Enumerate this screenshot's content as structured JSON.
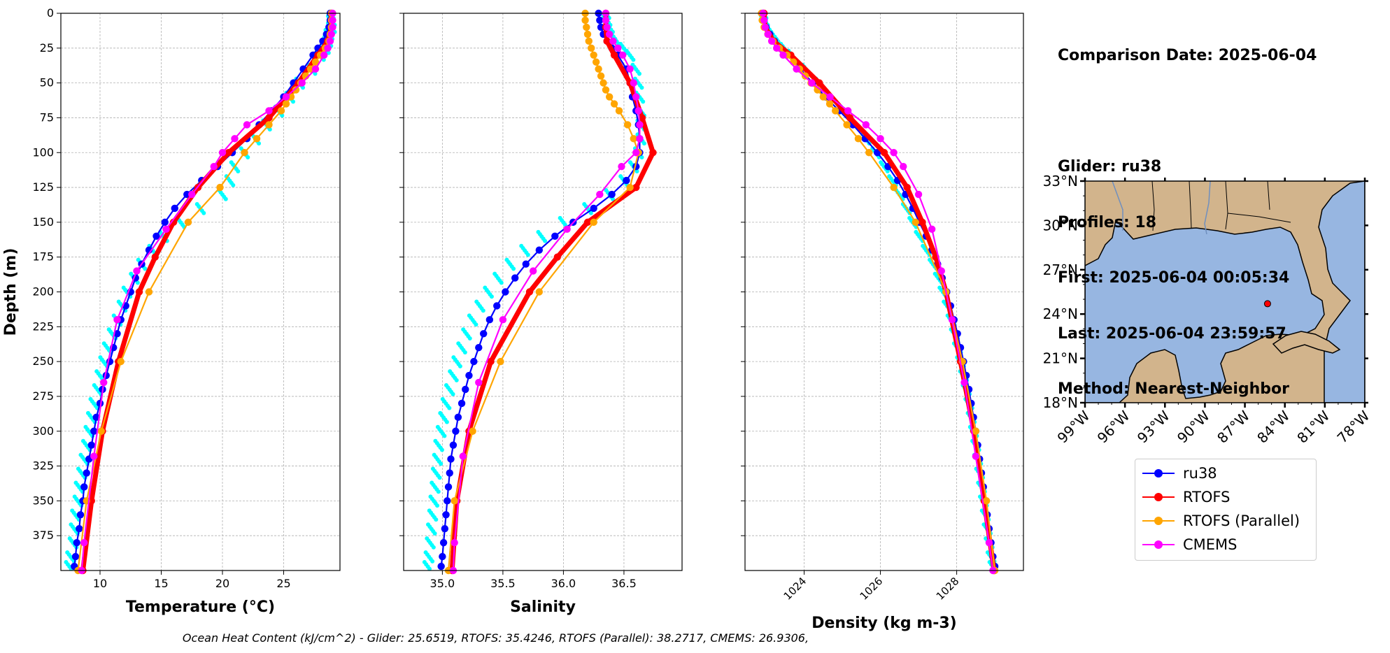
{
  "info": {
    "comparison_date": "Comparison Date: 2025-06-04",
    "glider": "Glider: ru38",
    "profiles": "Profiles: 18",
    "first": "First: 2025-06-04 00:05:34",
    "last": "Last: 2025-06-04 23:59:57",
    "method": "Method: Nearest-Neighbor"
  },
  "footer": "Ocean Heat Content (kJ/cm^2) - Glider: 25.6519,  RTOFS: 35.4246,  RTOFS (Parallel): 38.2717,  CMEMS: 26.9306,",
  "colors": {
    "ru38": "#0000ff",
    "rtofs": "#ff0000",
    "rtofs_parallel": "#ffa500",
    "cmems": "#ff00ff",
    "glider_raw": "#00ffff",
    "land": "#d2b48c",
    "ocean": "#97b6e1"
  },
  "legend": [
    {
      "label": "ru38",
      "color": "#0000ff"
    },
    {
      "label": "RTOFS",
      "color": "#ff0000"
    },
    {
      "label": "RTOFS (Parallel)",
      "color": "#ffa500"
    },
    {
      "label": "CMEMS",
      "color": "#ff00ff"
    }
  ],
  "chart_data": [
    {
      "type": "line",
      "xlabel": "Temperature (°C)",
      "ylabel": "Depth (m)",
      "xlim": [
        6.8,
        29.6
      ],
      "ylim": [
        400,
        0
      ],
      "xticks": [
        10,
        15,
        20,
        25
      ],
      "yticks": [
        0,
        25,
        50,
        75,
        100,
        125,
        150,
        175,
        200,
        225,
        250,
        275,
        300,
        325,
        350,
        375
      ],
      "grid": true,
      "depth": [
        0,
        5,
        10,
        15,
        20,
        25,
        30,
        40,
        50,
        60,
        70,
        80,
        90,
        100,
        110,
        120,
        130,
        140,
        150,
        160,
        170,
        180,
        190,
        200,
        210,
        220,
        230,
        240,
        250,
        260,
        270,
        280,
        290,
        300,
        310,
        320,
        330,
        340,
        350,
        360,
        370,
        380,
        390,
        397
      ],
      "series": [
        {
          "name": "ru38",
          "values": [
            28.8,
            28.8,
            28.7,
            28.5,
            28.2,
            27.8,
            27.4,
            26.6,
            25.8,
            25.0,
            24.0,
            23.0,
            22.0,
            20.8,
            19.6,
            18.3,
            17.1,
            16.1,
            15.3,
            14.6,
            14.0,
            13.4,
            12.9,
            12.5,
            12.1,
            11.7,
            11.4,
            11.1,
            10.8,
            10.5,
            10.2,
            10.0,
            9.7,
            9.5,
            9.3,
            9.1,
            8.9,
            8.7,
            8.6,
            8.4,
            8.3,
            8.1,
            8.0,
            7.9
          ]
        },
        {
          "name": "RTOFS",
          "depth": [
            0,
            10,
            20,
            30,
            50,
            75,
            100,
            125,
            150,
            175,
            200,
            250,
            300,
            350,
            400
          ],
          "values": [
            28.9,
            28.9,
            28.6,
            27.8,
            26.2,
            23.8,
            20.5,
            18.0,
            16.0,
            14.5,
            13.2,
            11.5,
            10.2,
            9.3,
            8.6
          ]
        },
        {
          "name": "RTOFS (Parallel)",
          "depth": [
            0,
            5,
            10,
            15,
            20,
            25,
            30,
            35,
            40,
            45,
            50,
            55,
            60,
            65,
            70,
            80,
            90,
            100,
            125,
            150,
            200,
            250,
            300,
            350,
            400
          ],
          "values": [
            28.9,
            28.9,
            28.9,
            28.8,
            28.7,
            28.4,
            28.0,
            27.6,
            27.2,
            26.8,
            26.4,
            26.0,
            25.6,
            25.2,
            24.8,
            23.8,
            22.8,
            21.8,
            19.8,
            17.2,
            14.0,
            11.7,
            10.1,
            8.9,
            8.2
          ]
        },
        {
          "name": "CMEMS",
          "depth": [
            0,
            5,
            10,
            15,
            20,
            25,
            30,
            40,
            50,
            60,
            70,
            80,
            90,
            100,
            110,
            130,
            155,
            185,
            220,
            265,
            318,
            380,
            400
          ],
          "values": [
            29.0,
            29.0,
            29.0,
            28.9,
            28.8,
            28.6,
            28.3,
            27.6,
            26.5,
            25.2,
            23.8,
            22.0,
            21.0,
            20.0,
            19.3,
            17.5,
            15.4,
            13.0,
            11.4,
            10.3,
            9.5,
            8.7,
            8.5
          ]
        },
        {
          "name": "Glider profiles",
          "values": [
            28.8,
            28.9,
            28.9,
            28.7,
            28.6,
            28.4,
            28.0,
            27.3,
            26.3,
            25.5,
            24.6,
            23.6,
            22.7,
            21.8,
            21.0,
            20.6,
            20.0,
            18.2,
            16.6,
            15.2,
            14.3,
            13.4,
            12.8,
            12.2,
            11.8,
            11.4,
            11.0,
            10.6,
            10.3,
            10.0,
            9.8,
            9.5,
            9.3,
            9.1,
            8.9,
            8.7,
            8.5,
            8.3,
            8.2,
            8.0,
            7.9,
            7.8,
            7.6,
            7.5
          ]
        }
      ]
    },
    {
      "type": "line",
      "xlabel": "Salinity",
      "xlim": [
        34.68,
        36.98
      ],
      "ylim": [
        400,
        0
      ],
      "xticks": [
        35.0,
        35.5,
        36.0,
        36.5
      ],
      "grid": true,
      "depth": [
        0,
        5,
        10,
        15,
        20,
        25,
        30,
        40,
        50,
        60,
        70,
        80,
        90,
        100,
        110,
        120,
        130,
        140,
        150,
        160,
        170,
        180,
        190,
        200,
        210,
        220,
        230,
        240,
        250,
        260,
        270,
        280,
        290,
        300,
        310,
        320,
        330,
        340,
        350,
        360,
        370,
        380,
        390,
        397
      ],
      "series": [
        {
          "name": "ru38",
          "values": [
            36.29,
            36.3,
            36.31,
            36.33,
            36.36,
            36.4,
            36.45,
            36.52,
            36.55,
            36.57,
            36.6,
            36.62,
            36.63,
            36.63,
            36.6,
            36.52,
            36.4,
            36.25,
            36.08,
            35.93,
            35.8,
            35.69,
            35.6,
            35.52,
            35.45,
            35.39,
            35.34,
            35.3,
            35.26,
            35.22,
            35.19,
            35.16,
            35.13,
            35.11,
            35.09,
            35.07,
            35.06,
            35.05,
            35.04,
            35.03,
            35.02,
            35.01,
            35.0,
            34.99
          ]
        },
        {
          "name": "RTOFS",
          "depth": [
            0,
            10,
            20,
            30,
            50,
            75,
            100,
            125,
            150,
            175,
            200,
            250,
            300,
            350,
            400
          ],
          "values": [
            36.35,
            36.35,
            36.36,
            36.42,
            36.55,
            36.65,
            36.74,
            36.6,
            36.2,
            35.95,
            35.72,
            35.4,
            35.22,
            35.12,
            35.08
          ]
        },
        {
          "name": "RTOFS (Parallel)",
          "depth": [
            0,
            5,
            10,
            15,
            20,
            25,
            30,
            35,
            40,
            45,
            50,
            55,
            60,
            65,
            70,
            80,
            90,
            100,
            125,
            150,
            200,
            250,
            300,
            350,
            400
          ],
          "values": [
            36.18,
            36.18,
            36.19,
            36.2,
            36.21,
            36.23,
            36.25,
            36.27,
            36.29,
            36.31,
            36.33,
            36.35,
            36.38,
            36.42,
            36.46,
            36.53,
            36.58,
            36.62,
            36.55,
            36.25,
            35.8,
            35.48,
            35.25,
            35.1,
            35.05
          ]
        },
        {
          "name": "CMEMS",
          "depth": [
            0,
            5,
            10,
            15,
            20,
            25,
            30,
            40,
            50,
            60,
            70,
            80,
            90,
            100,
            110,
            130,
            155,
            185,
            220,
            265,
            318,
            380,
            400
          ],
          "values": [
            36.35,
            36.35,
            36.36,
            36.38,
            36.41,
            36.45,
            36.49,
            36.55,
            36.58,
            36.6,
            36.62,
            36.63,
            36.63,
            36.6,
            36.48,
            36.3,
            36.03,
            35.75,
            35.5,
            35.3,
            35.17,
            35.1,
            35.09
          ]
        },
        {
          "name": "Glider profiles",
          "values": [
            36.35,
            36.36,
            36.38,
            36.4,
            36.44,
            36.5,
            36.55,
            36.6,
            36.62,
            36.63,
            36.64,
            36.64,
            36.64,
            36.62,
            36.58,
            36.5,
            36.38,
            36.2,
            36.0,
            35.82,
            35.68,
            35.56,
            35.46,
            35.38,
            35.31,
            35.25,
            35.2,
            35.16,
            35.12,
            35.09,
            35.06,
            35.03,
            35.01,
            34.99,
            34.97,
            34.96,
            34.95,
            34.94,
            34.93,
            34.92,
            34.91,
            34.9,
            34.89,
            34.88
          ]
        }
      ]
    },
    {
      "type": "line",
      "xlabel": "Density (kg m-3)",
      "xlim": [
        1022.45,
        1029.75
      ],
      "ylim": [
        400,
        0
      ],
      "xticks": [
        1024,
        1026,
        1028
      ],
      "grid": true,
      "depth": [
        0,
        5,
        10,
        15,
        20,
        25,
        30,
        40,
        50,
        60,
        70,
        80,
        90,
        100,
        110,
        120,
        130,
        140,
        150,
        160,
        170,
        180,
        190,
        200,
        210,
        220,
        230,
        240,
        250,
        260,
        270,
        280,
        290,
        300,
        310,
        320,
        330,
        340,
        350,
        360,
        370,
        380,
        390,
        397
      ],
      "series": [
        {
          "name": "ru38",
          "values": [
            1022.92,
            1022.95,
            1023.0,
            1023.1,
            1023.22,
            1023.38,
            1023.55,
            1023.9,
            1024.22,
            1024.56,
            1024.92,
            1025.28,
            1025.6,
            1025.92,
            1026.2,
            1026.45,
            1026.66,
            1026.85,
            1027.02,
            1027.2,
            1027.35,
            1027.5,
            1027.62,
            1027.74,
            1027.84,
            1027.93,
            1028.02,
            1028.1,
            1028.18,
            1028.25,
            1028.32,
            1028.38,
            1028.44,
            1028.5,
            1028.55,
            1028.6,
            1028.65,
            1028.7,
            1028.75,
            1028.8,
            1028.85,
            1028.9,
            1028.95,
            1029.0
          ]
        },
        {
          "name": "RTOFS",
          "depth": [
            0,
            10,
            20,
            30,
            50,
            75,
            100,
            125,
            150,
            175,
            200,
            250,
            300,
            350,
            400
          ],
          "values": [
            1022.95,
            1022.98,
            1023.2,
            1023.65,
            1024.4,
            1025.2,
            1026.1,
            1026.7,
            1027.1,
            1027.45,
            1027.72,
            1028.1,
            1028.45,
            1028.72,
            1028.98
          ]
        },
        {
          "name": "RTOFS (Parallel)",
          "depth": [
            0,
            5,
            10,
            15,
            20,
            25,
            30,
            35,
            40,
            45,
            50,
            55,
            60,
            65,
            70,
            80,
            90,
            100,
            125,
            150,
            200,
            250,
            300,
            350,
            400
          ],
          "values": [
            1022.88,
            1022.9,
            1022.95,
            1023.05,
            1023.18,
            1023.35,
            1023.55,
            1023.72,
            1023.88,
            1024.03,
            1024.18,
            1024.35,
            1024.5,
            1024.67,
            1024.82,
            1025.12,
            1025.42,
            1025.7,
            1026.35,
            1026.92,
            1027.72,
            1028.15,
            1028.5,
            1028.78,
            1029.0
          ]
        },
        {
          "name": "CMEMS",
          "depth": [
            0,
            5,
            10,
            15,
            20,
            25,
            30,
            40,
            50,
            60,
            70,
            80,
            90,
            100,
            110,
            130,
            155,
            185,
            220,
            265,
            318,
            380,
            400
          ],
          "values": [
            1022.92,
            1022.95,
            1022.98,
            1023.05,
            1023.15,
            1023.28,
            1023.45,
            1023.8,
            1024.2,
            1024.68,
            1025.15,
            1025.62,
            1026.0,
            1026.35,
            1026.6,
            1027.0,
            1027.35,
            1027.6,
            1027.88,
            1028.2,
            1028.5,
            1028.85,
            1028.95
          ]
        },
        {
          "name": "Glider profiles",
          "values": [
            1022.92,
            1022.96,
            1023.05,
            1023.18,
            1023.32,
            1023.48,
            1023.68,
            1024.05,
            1024.4,
            1024.72,
            1025.05,
            1025.35,
            1025.62,
            1025.88,
            1026.1,
            1026.32,
            1026.5,
            1026.68,
            1026.85,
            1027.02,
            1027.2,
            1027.38,
            1027.52,
            1027.64,
            1027.75,
            1027.85,
            1027.94,
            1028.02,
            1028.1,
            1028.18,
            1028.25,
            1028.32,
            1028.38,
            1028.44,
            1028.5,
            1028.55,
            1028.6,
            1028.65,
            1028.7,
            1028.75,
            1028.8,
            1028.85,
            1028.9,
            1028.95
          ]
        }
      ]
    },
    {
      "type": "map",
      "lon_range": [
        -99,
        -78
      ],
      "lat_range": [
        18,
        33
      ],
      "lon_ticks": [
        "99°W",
        "96°W",
        "93°W",
        "90°W",
        "87°W",
        "84°W",
        "81°W",
        "78°W"
      ],
      "lat_ticks": [
        "33°N",
        "30°N",
        "27°N",
        "24°N",
        "21°N",
        "18°N"
      ],
      "glider_position": {
        "lon": -85.3,
        "lat": 24.7
      }
    }
  ]
}
